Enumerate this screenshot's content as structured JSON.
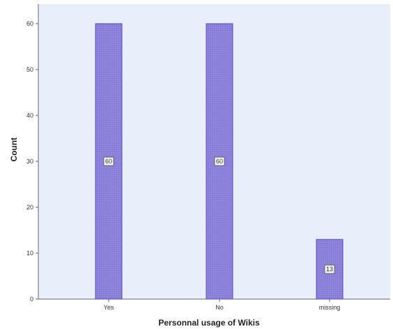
{
  "chart_data": {
    "type": "bar",
    "categories": [
      "Yes",
      "No",
      "missing"
    ],
    "values": [
      60,
      60,
      13
    ],
    "data_labels": [
      "60",
      "60",
      "13"
    ],
    "xlabel": "Personnal usage of Wikis",
    "ylabel": "Count",
    "ylim": [
      0,
      60
    ],
    "yticks": [
      "0",
      "10",
      "20",
      "30",
      "40",
      "50",
      "60"
    ],
    "grid": false,
    "legend": "none",
    "colors": {
      "bar_fill": "#8a7fd8",
      "bar_stroke": "#5a4fb0",
      "plot_background": "#e8eefa",
      "axis": "#666666"
    }
  }
}
